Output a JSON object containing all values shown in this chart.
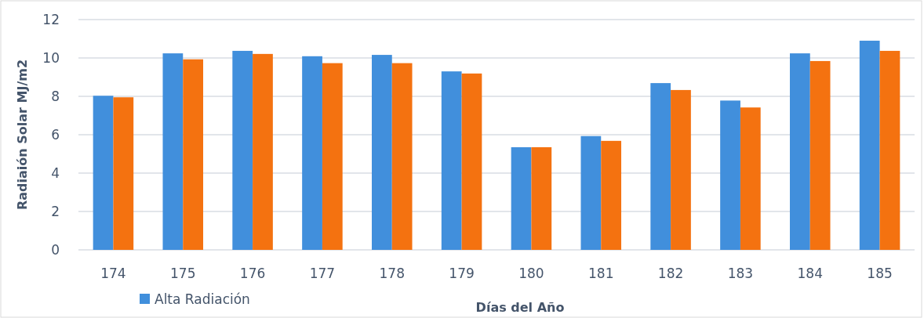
{
  "chart_data": {
    "type": "bar",
    "xlabel": "Días del Año",
    "ylabel": "Radiaión Solar MJ/m2",
    "categories": [
      "174",
      "175",
      "176",
      "177",
      "178",
      "179",
      "180",
      "181",
      "182",
      "183",
      "184",
      "185"
    ],
    "series": [
      {
        "name": "Alta Radiación",
        "color": "#418fdc",
        "values": [
          8.03,
          10.24,
          10.37,
          10.09,
          10.16,
          9.3,
          5.35,
          5.93,
          8.69,
          7.78,
          10.24,
          10.9
        ]
      },
      {
        "color": "#f47210",
        "values": [
          7.95,
          9.93,
          10.21,
          9.73,
          9.73,
          9.19,
          5.35,
          5.68,
          8.33,
          7.42,
          9.84,
          10.37
        ]
      }
    ],
    "ylim": [
      0,
      12
    ],
    "yticks": [
      0,
      2,
      4,
      6,
      8,
      10,
      12
    ],
    "grid": "y",
    "legend": "bottom left"
  }
}
